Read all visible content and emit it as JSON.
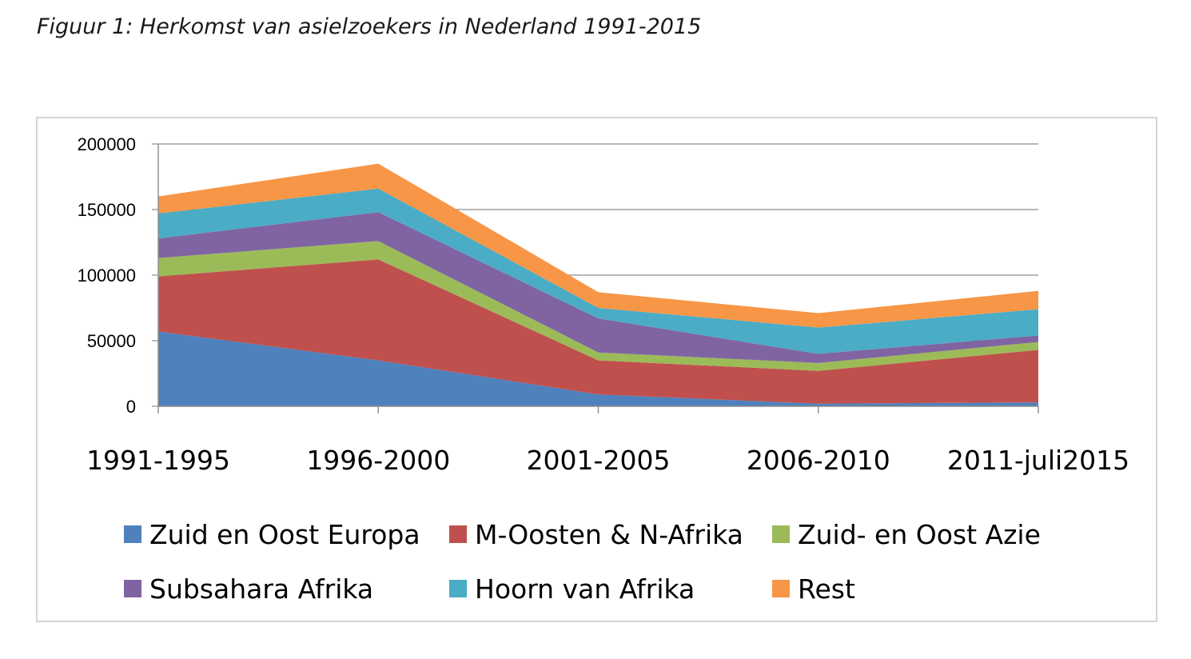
{
  "figure": {
    "caption": "Figuur 1: Herkomst van asielzoekers in Nederland 1991-2015"
  },
  "chart_data": {
    "type": "area",
    "stacked": true,
    "title": "",
    "xlabel": "",
    "ylabel": "",
    "categories": [
      "1991-1995",
      "1996-2000",
      "2001-2005",
      "2006-2010",
      "2011-juli2015"
    ],
    "ylim": [
      0,
      200000
    ],
    "yticks": [
      0,
      50000,
      100000,
      150000,
      200000
    ],
    "grid": true,
    "legend_position": "bottom",
    "series": [
      {
        "name": "Zuid en Oost Europa",
        "color": "#4f81bd",
        "values": [
          57000,
          35000,
          9000,
          2000,
          3000
        ]
      },
      {
        "name": "M-Oosten & N-Afrika",
        "color": "#c0504d",
        "values": [
          42000,
          77000,
          26000,
          25000,
          40000
        ]
      },
      {
        "name": "Zuid- en Oost Azie",
        "color": "#9bbb59",
        "values": [
          14000,
          14000,
          6000,
          6000,
          6000
        ]
      },
      {
        "name": "Subsahara Afrika",
        "color": "#8064a2",
        "values": [
          15000,
          22000,
          26000,
          7000,
          5000
        ]
      },
      {
        "name": "Hoorn van Afrika",
        "color": "#4bacc6",
        "values": [
          19000,
          18000,
          8000,
          20000,
          20000
        ]
      },
      {
        "name": "Rest",
        "color": "#f79646",
        "values": [
          13000,
          19000,
          12000,
          11000,
          14000
        ]
      }
    ]
  }
}
